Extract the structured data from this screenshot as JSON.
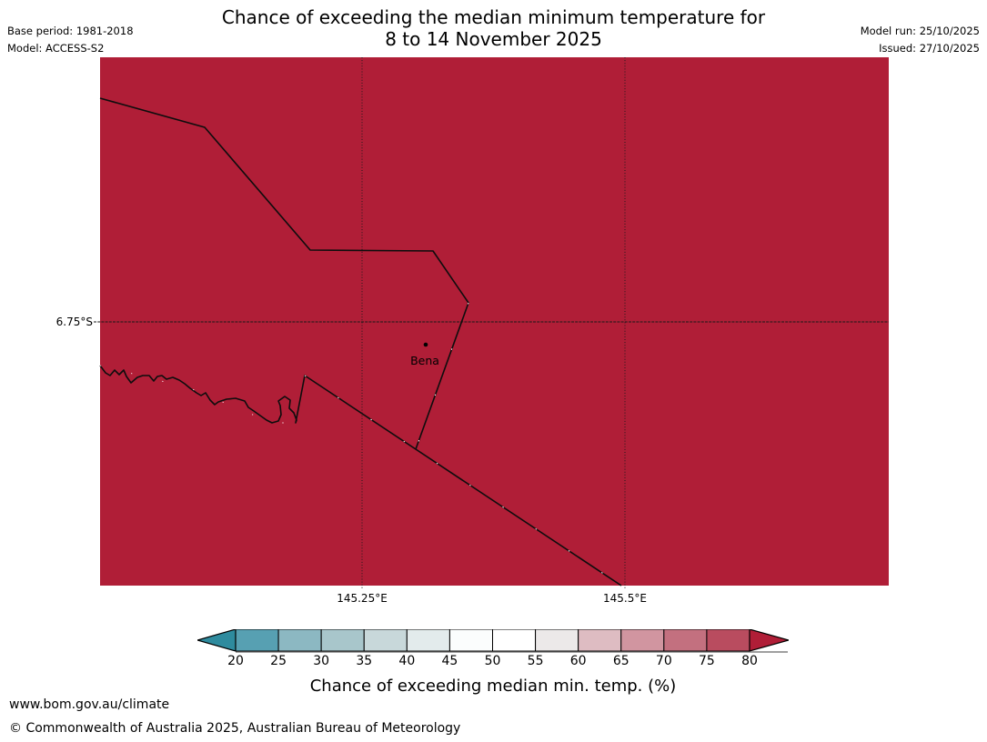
{
  "header": {
    "title_line1": "Chance of exceeding the median minimum temperature for",
    "title_line2": "8 to 14 November 2025",
    "base_period": "Base period: 1981-2018",
    "model": "Model: ACCESS-S2",
    "model_run": "Model run: 25/10/2025",
    "issued": "Issued: 27/10/2025"
  },
  "map": {
    "fill_color": "#b01e37",
    "line_color": "#0d0d0d",
    "latitude_label": "6.75°S",
    "longitude_labels": [
      "145.25°E",
      "145.5°E"
    ],
    "town": {
      "name": "Bena"
    }
  },
  "colorbar": {
    "ticks": [
      "20",
      "25",
      "30",
      "35",
      "40",
      "45",
      "50",
      "55",
      "60",
      "65",
      "70",
      "75",
      "80"
    ],
    "segment_colors": [
      "#57a0b2",
      "#8cb8c2",
      "#a8c6cb",
      "#c8d8da",
      "#e3ebec",
      "#fbfdfd",
      "#ffffff",
      "#ece9e9",
      "#debcc2",
      "#d195a0",
      "#c3707f",
      "#b94c5f"
    ],
    "under_arrow_color": "#2e8b9e",
    "over_arrow_color": "#b01e37",
    "outline_color": "#000000",
    "underline_color": "#808080",
    "caption": "Chance of exceeding median min. temp. (%)"
  },
  "footer": {
    "url": "www.bom.gov.au/climate",
    "copyright": "© Commonwealth of Australia 2025, Australian Bureau of Meteorology"
  },
  "chart_data": {
    "type": "heatmap",
    "title": "Chance of exceeding the median minimum temperature for 8 to 14 November 2025",
    "colorbar_label": "Chance of exceeding median min. temp. (%)",
    "colorbar_ticks": [
      20,
      25,
      30,
      35,
      40,
      45,
      50,
      55,
      60,
      65,
      70,
      75,
      80
    ],
    "colorbar_range_extended": "arrows below 20 and above 80",
    "map_values": "entire visible region exceeds 80% (filled with over-scale colour)",
    "x_tick_labels": [
      "145.25°E",
      "145.5°E"
    ],
    "y_tick_labels": [
      "6.75°S"
    ],
    "labeled_place": "Bena",
    "grid": "dotted meridians, dashed parallel at 6.75°S"
  }
}
